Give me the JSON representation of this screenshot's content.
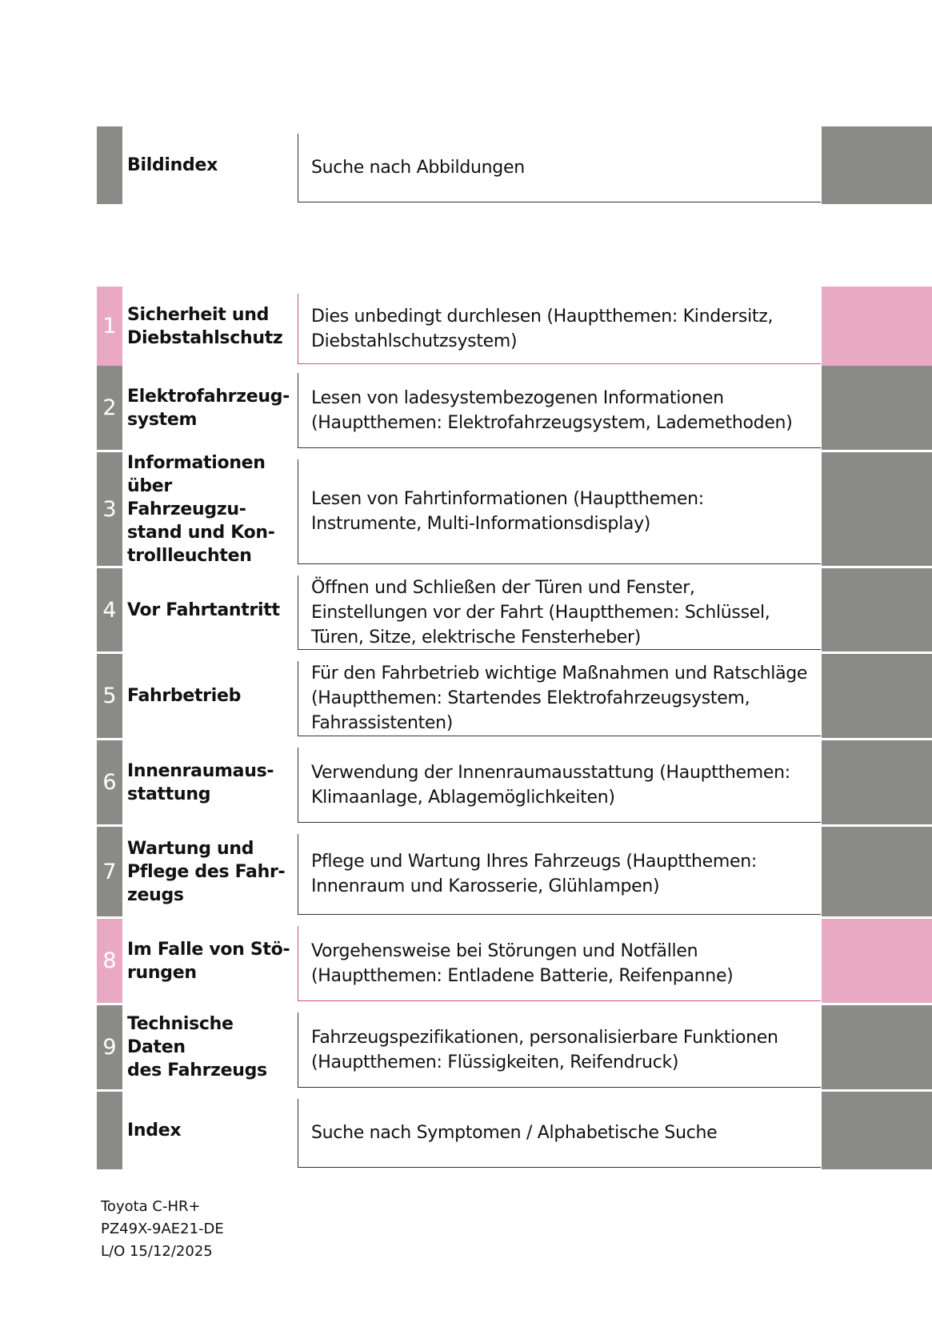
{
  "sections": [
    {
      "number": "",
      "title": "Bildindex",
      "description": "Suche nach Abbildungen",
      "color": "gray"
    },
    {
      "number": "1",
      "title": "Sicherheit und\nDiebstahlschutz",
      "description": "Dies unbedingt durchlesen (Hauptthemen: Kindersitz,\nDiebstahlschutzsystem)",
      "color": "pink"
    },
    {
      "number": "2",
      "title": "Elektrofahrzeug-\nsystem",
      "description": "Lesen von ladesystembezogenen Informationen\n(Hauptthemen: Elektrofahrzeugsystem, Lademethoden)",
      "color": "gray"
    },
    {
      "number": "3",
      "title": "Informationen\nüber Fahrzeugzu-\nstand und Kon-\ntrollleuchten",
      "description": "Lesen von Fahrtinformationen (Hauptthemen:\nInstrumente, Multi-Informationsdisplay)",
      "color": "gray"
    },
    {
      "number": "4",
      "title": "Vor Fahrtantritt",
      "description": "Öffnen und Schließen der Türen und Fenster,\nEinstellungen vor der Fahrt (Hauptthemen: Schlüssel,\nTüren, Sitze, elektrische Fensterheber)",
      "color": "gray"
    },
    {
      "number": "5",
      "title": "Fahrbetrieb",
      "description": "Für den Fahrbetrieb wichtige Maßnahmen und Ratschläge\n(Hauptthemen: Startendes Elektrofahrzeugsystem,\nFahrassistenten)",
      "color": "gray"
    },
    {
      "number": "6",
      "title": "Innenraumaus-\nstattung",
      "description": "Verwendung der Innenraumausstattung (Hauptthemen:\nKlimaanlage, Ablagemöglichkeiten)",
      "color": "gray"
    },
    {
      "number": "7",
      "title": "Wartung und\nPflege des Fahr-\nzeugs",
      "description": "Pflege und Wartung Ihres Fahrzeugs (Hauptthemen:\nInnenraum und Karosserie, Glühlampen)",
      "color": "gray"
    },
    {
      "number": "8",
      "title": "Im Falle von Stö-\nrungen",
      "description": "Vorgehensweise bei Störungen und Notfällen\n(Hauptthemen: Entladene Batterie, Reifenpanne)",
      "color": "pink"
    },
    {
      "number": "9",
      "title": "Technische Daten\ndes Fahrzeugs",
      "description": "Fahrzeugspezifikationen, personalisierbare Funktionen\n(Hauptthemen: Flüssigkeiten, Reifendruck)",
      "color": "gray"
    },
    {
      "number": "",
      "title": "Index",
      "description": "Suche nach Symptomen / Alphabetische Suche",
      "color": "gray"
    }
  ],
  "colors": {
    "gray": "#8a8a88",
    "pink": "#eaa9c2",
    "pink_line": "#cf4d8e"
  },
  "footer": {
    "model": "Toyota C-HR+",
    "code": "PZ49X-9AE21-DE",
    "date": "L/O 15/12/2025"
  }
}
